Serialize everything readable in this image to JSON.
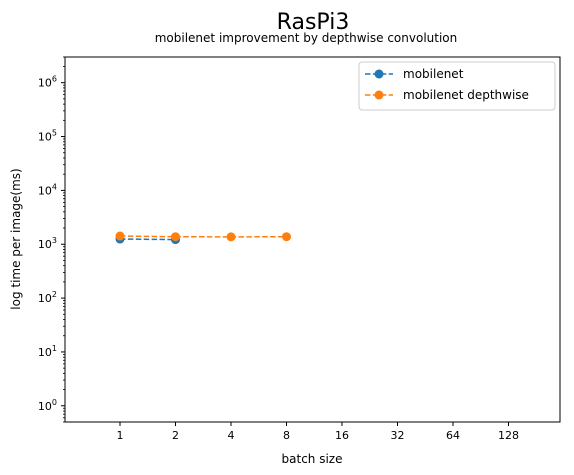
{
  "chart_data": {
    "type": "line",
    "title": "RasPi3",
    "subtitle": "mobilenet improvement by depthwise convolution",
    "xlabel": "batch size",
    "ylabel": "log time per image(ms)",
    "x_scale": "categorical",
    "y_scale": "log",
    "categories": [
      "1",
      "2",
      "4",
      "8",
      "16",
      "32",
      "64",
      "128"
    ],
    "ylim": [
      0.5,
      3000000
    ],
    "y_ticks": [
      1,
      10,
      100,
      1000,
      10000,
      100000,
      1000000
    ],
    "y_tick_labels": [
      "10^0",
      "10^1",
      "10^2",
      "10^3",
      "10^4",
      "10^5",
      "10^6"
    ],
    "grid": false,
    "legend_position": "top-right",
    "series": [
      {
        "name": "mobilenet",
        "color": "#1f77b4",
        "x": [
          "1",
          "2"
        ],
        "values": [
          1250,
          1220
        ]
      },
      {
        "name": "mobilenet depthwise",
        "color": "#ff7f0e",
        "x": [
          "1",
          "2",
          "4",
          "8"
        ],
        "values": [
          1420,
          1380,
          1370,
          1380
        ]
      }
    ]
  }
}
